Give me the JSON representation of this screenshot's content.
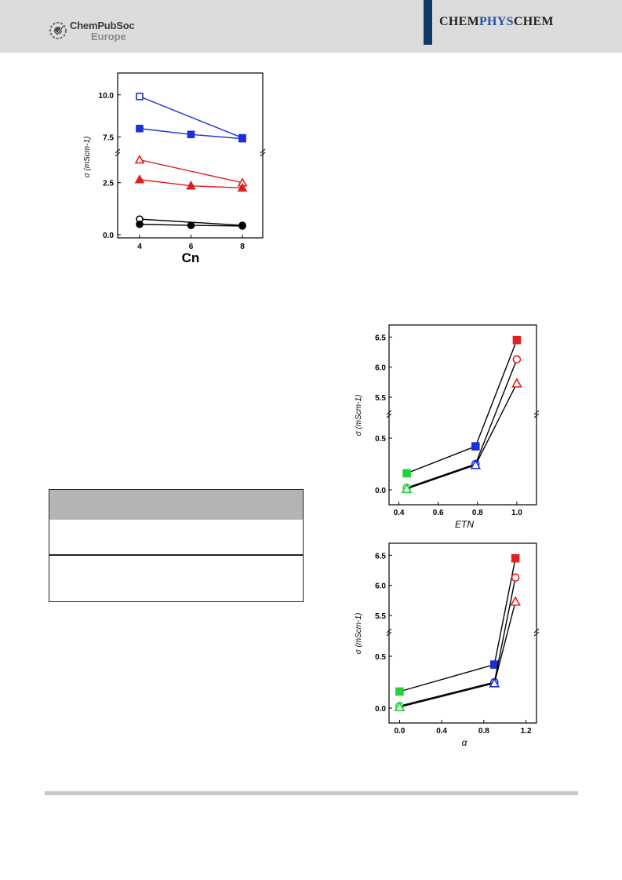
{
  "header": {
    "publisher_line1": "ChemPubSoc",
    "publisher_line2": "Europe",
    "journal_parts": [
      "CHEM",
      "PHYS",
      "CHEM"
    ]
  },
  "colors": {
    "header_band": "#dcdcdc",
    "journal_bar": "#0d3a66",
    "blue": "#1f2fd6",
    "red": "#e02020",
    "black": "#000000",
    "green": "#22d23a",
    "table_header": "#b4b4b4"
  },
  "chart_data": [
    {
      "type": "line",
      "xlabel": "Cn",
      "ylabel": "σ (mScm-1)",
      "x_ticks": [
        "4",
        "6",
        "8"
      ],
      "y_ticks_upper": [
        "7.5",
        "10.0"
      ],
      "y_ticks_lower": [
        "0.0",
        "2.5"
      ],
      "axis_break": true,
      "series": [
        {
          "marker": "square-open",
          "color": "blue",
          "x": [
            4,
            8
          ],
          "y": [
            9.9,
            7.45
          ]
        },
        {
          "marker": "square-filled",
          "color": "blue",
          "x": [
            4,
            6,
            8
          ],
          "y": [
            8.0,
            7.65,
            7.4
          ]
        },
        {
          "marker": "triangle-open",
          "color": "red",
          "x": [
            4,
            8
          ],
          "y": [
            3.6,
            2.5
          ]
        },
        {
          "marker": "triangle-filled",
          "color": "red",
          "x": [
            4,
            6,
            8
          ],
          "y": [
            2.65,
            2.35,
            2.25
          ]
        },
        {
          "marker": "circle-open",
          "color": "black",
          "x": [
            4,
            8
          ],
          "y": [
            0.75,
            0.45
          ]
        },
        {
          "marker": "circle-filled",
          "color": "black",
          "x": [
            4,
            6,
            8
          ],
          "y": [
            0.5,
            0.45,
            0.42
          ]
        }
      ]
    },
    {
      "type": "line",
      "xlabel": "ETN",
      "ylabel": "σ (mScm-1)",
      "x_ticks": [
        "0.4",
        "0.6",
        "0.8",
        "1.0"
      ],
      "y_ticks_upper": [
        "5.5",
        "6.0",
        "6.5"
      ],
      "y_ticks_lower": [
        "0.0",
        "0.5"
      ],
      "axis_break": true,
      "series": [
        {
          "marker": "square-filled",
          "colors": [
            "green",
            "blue",
            "red"
          ],
          "x": [
            0.44,
            0.79,
            1.0
          ],
          "y": [
            0.16,
            0.42,
            6.45
          ]
        },
        {
          "marker": "circle-open",
          "colors": [
            "green",
            "blue",
            "red"
          ],
          "x": [
            0.44,
            0.79,
            1.0
          ],
          "y": [
            0.02,
            0.25,
            6.13
          ]
        },
        {
          "marker": "triangle-open",
          "colors": [
            "green",
            "blue",
            "red"
          ],
          "x": [
            0.44,
            0.79,
            1.0
          ],
          "y": [
            0.01,
            0.24,
            5.73
          ]
        }
      ]
    },
    {
      "type": "line",
      "xlabel": "α",
      "ylabel": "σ (mScm-1)",
      "x_ticks": [
        "0.0",
        "0.4",
        "0.8",
        "1.2"
      ],
      "y_ticks_upper": [
        "5.5",
        "6.0",
        "6.5"
      ],
      "y_ticks_lower": [
        "0.0",
        "0.5"
      ],
      "axis_break": true,
      "series": [
        {
          "marker": "square-filled",
          "colors": [
            "green",
            "blue",
            "red"
          ],
          "x": [
            0.0,
            0.9,
            1.1
          ],
          "y": [
            0.16,
            0.42,
            6.45
          ]
        },
        {
          "marker": "circle-open",
          "colors": [
            "green",
            "blue",
            "red"
          ],
          "x": [
            0.0,
            0.9,
            1.1
          ],
          "y": [
            0.02,
            0.25,
            6.13
          ]
        },
        {
          "marker": "triangle-open",
          "colors": [
            "green",
            "blue",
            "red"
          ],
          "x": [
            0.0,
            0.9,
            1.1
          ],
          "y": [
            0.01,
            0.24,
            5.73
          ]
        }
      ]
    }
  ]
}
